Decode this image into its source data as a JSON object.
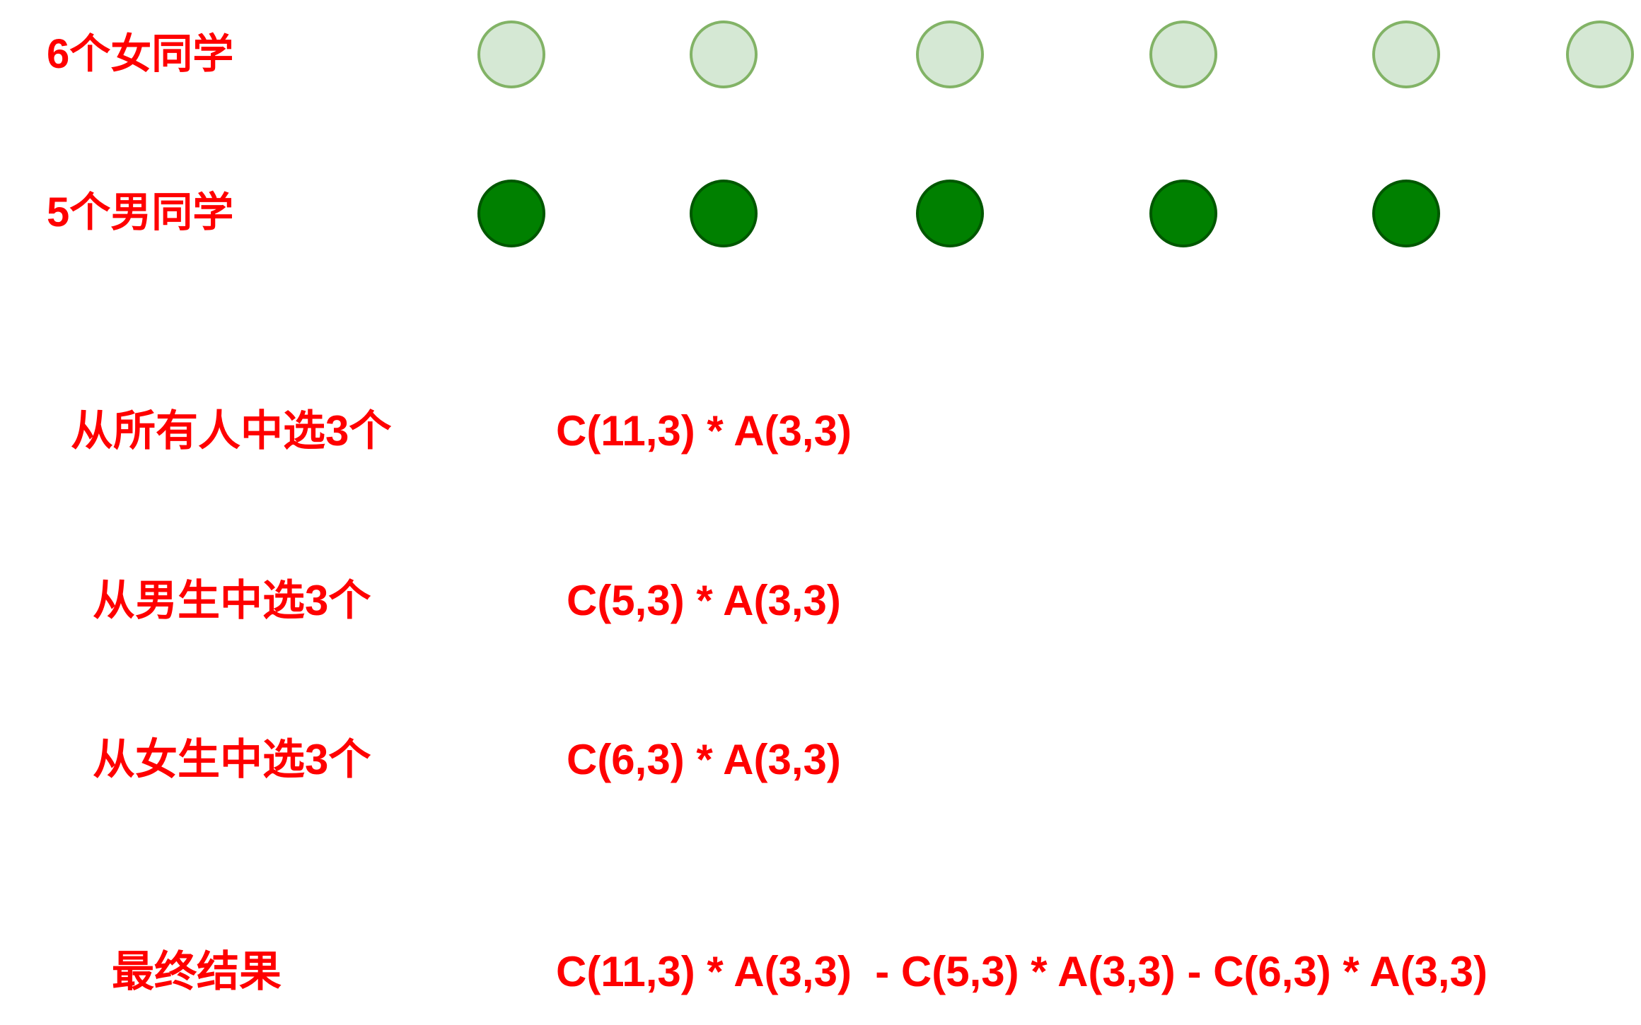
{
  "rows": {
    "girls_label": "6个女同学",
    "boys_label": "5个男同学",
    "girls_count": 6,
    "boys_count": 5,
    "girl_fill": "#d5e8d4",
    "girl_stroke": "#82b366",
    "boy_fill": "#008000",
    "boy_stroke": "#005700"
  },
  "steps": [
    {
      "label": "从所有人中选3个",
      "formula": "C(11,3) * A(3,3)"
    },
    {
      "label": "从男生中选3个",
      "formula": "C(5,3) * A(3,3)"
    },
    {
      "label": "从女生中选3个",
      "formula": "C(6,3) * A(3,3)"
    }
  ],
  "result": {
    "label": "最终结果",
    "formula": "C(11,3) * A(3,3)  - C(5,3) * A(3,3) - C(6,3) * A(3,3)"
  },
  "text_color": "#ff0000"
}
